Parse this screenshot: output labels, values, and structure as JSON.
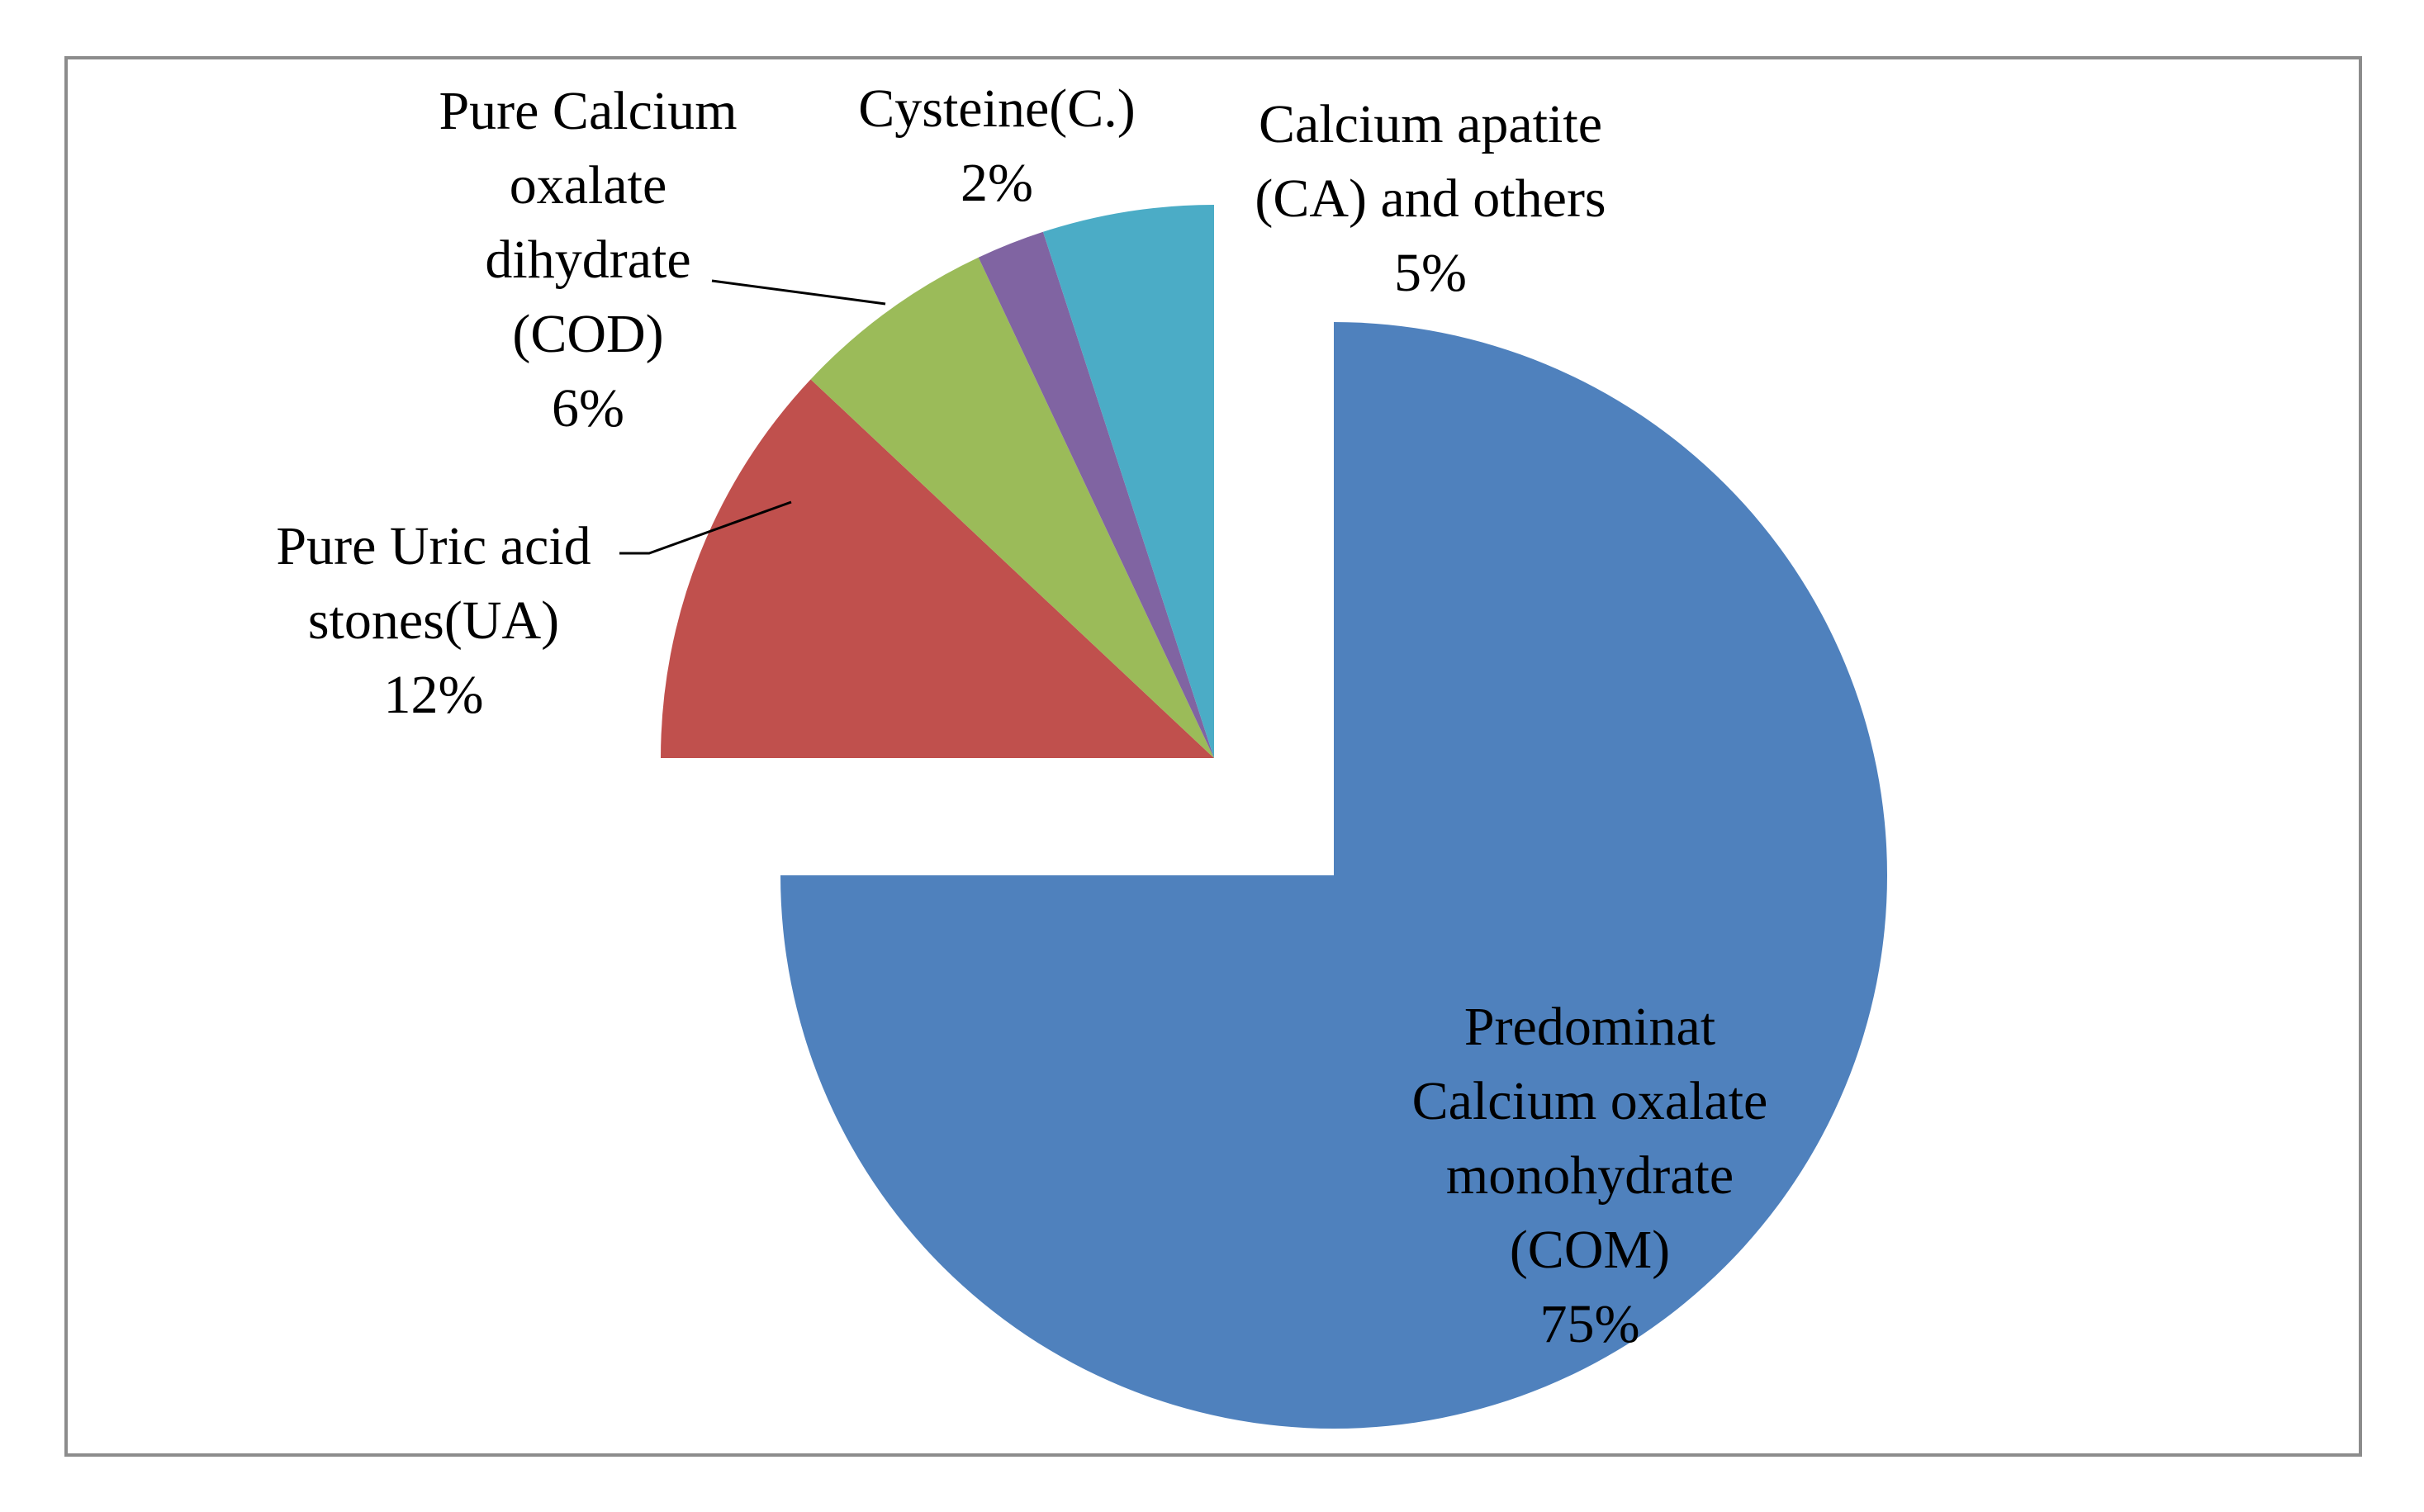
{
  "chart_data": {
    "type": "pie",
    "slices": [
      {
        "label_lines": [
          "Predominat",
          "Calcium oxalate",
          "monohydrate",
          "(COM)",
          "75%"
        ],
        "value": 75,
        "color": "#4f81bd"
      },
      {
        "label_lines": [
          "Pure Uric  acid",
          "stones(UA)",
          "12%"
        ],
        "value": 12,
        "color": "#c0504d"
      },
      {
        "label_lines": [
          "Pure Calcium",
          "oxalate",
          "dihydrate",
          "(COD)",
          "6%"
        ],
        "value": 6,
        "color": "#9bbb59"
      },
      {
        "label_lines": [
          "Cysteine(C.)",
          "2%"
        ],
        "value": 2,
        "color": "#8064a2"
      },
      {
        "label_lines": [
          "Calcium apatite",
          "(CA) and others",
          "5%"
        ],
        "value": 5,
        "color": "#4bacc6"
      }
    ]
  }
}
